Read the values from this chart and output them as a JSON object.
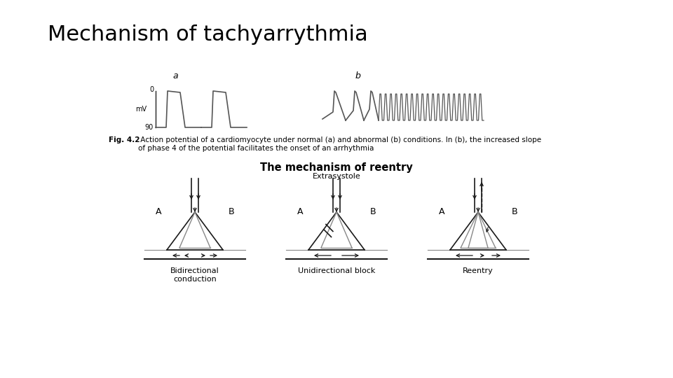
{
  "title": "Mechanism of tachyarrythmia",
  "title_fontsize": 22,
  "background_color": "#ffffff",
  "fig_caption_bold": "Fig. 4.2",
  "fig_caption_normal": "  Action potential of a cardiomyocyte under normal (a) and abnormal (b) conditions. In (b), the increased slope\nof phase 4 of the potential facilitates the onset of an arrhythmia",
  "reentry_title": "The mechanism of reentry",
  "extrasystole_label": "Extrasystole",
  "diagram_labels": [
    "Bidirectional\nconduction",
    "Unidirectional block",
    "Reentry"
  ],
  "line_color": "#555555",
  "dark_color": "#222222",
  "gray_color": "#777777"
}
